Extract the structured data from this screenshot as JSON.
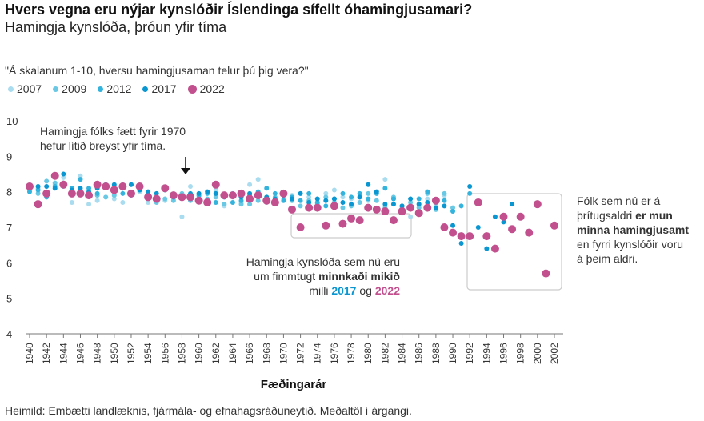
{
  "header": {
    "title": "Hvers vegna eru nýjar kynslóðir Íslendinga sífellt óhamingjusamari?",
    "subtitle": "Hamingja kynslóða, þróun yfir tíma",
    "question": "\"Á skalanum 1-10, hversu hamingjusaman telur þú þig vera?\""
  },
  "source": "Heimild: Embætti landlæknis, fjármála- og efnahagsráðuneytið. Meðaltöl í árgangi.",
  "annotations": {
    "top_left": [
      "Hamingja fólks fætt fyrir 1970",
      "hefur lítið breyst yfir tíma."
    ],
    "middle": {
      "line1": "Hamingja kynslóða sem nú eru",
      "line2_pre": "um fimmtugt ",
      "line2_bold": "minnkaði mikið",
      "line3_pre": "milli ",
      "year_a": "2017",
      "line3_mid": " og ",
      "year_b": "2022"
    },
    "right": {
      "line1": "Fólk sem nú er á",
      "line2_pre": "þrítugsaldri ",
      "line2_bold": "er mun",
      "line3_bold": "minna hamingjusamt",
      "line4": "en fyrri kynslóðir voru",
      "line5": "á þeim aldri."
    }
  },
  "colors": {
    "2007": "#a9dcef",
    "2009": "#69c8e3",
    "2012": "#34b3dd",
    "2017": "#0a96d1",
    "2022": "#c2508f",
    "box": "#cccccc"
  },
  "chart_data": {
    "type": "scatter",
    "xlabel": "Fæðingarár",
    "ylabel": "",
    "xlim": [
      1940,
      2002
    ],
    "ylim": [
      4,
      10
    ],
    "yticks": [
      4,
      5,
      6,
      7,
      8,
      9,
      10
    ],
    "xticks": [
      1940,
      1942,
      1944,
      1946,
      1948,
      1950,
      1952,
      1954,
      1956,
      1958,
      1960,
      1962,
      1964,
      1966,
      1968,
      1970,
      1972,
      1974,
      1976,
      1978,
      1980,
      1982,
      1984,
      1986,
      1988,
      1990,
      1992,
      1994,
      1996,
      1998,
      2000,
      2002
    ],
    "grid": false,
    "legend_position": "top-left",
    "series": [
      {
        "name": "2007",
        "x": [
          1940,
          1941,
          1942,
          1943,
          1944,
          1945,
          1946,
          1947,
          1948,
          1949,
          1950,
          1951,
          1952,
          1953,
          1954,
          1955,
          1956,
          1957,
          1958,
          1959,
          1960,
          1961,
          1962,
          1963,
          1964,
          1965,
          1966,
          1967,
          1968,
          1969,
          1970,
          1971,
          1972,
          1973,
          1974,
          1975,
          1976,
          1977,
          1978,
          1979,
          1980,
          1981,
          1982,
          1983,
          1984,
          1985,
          1986,
          1987,
          1988,
          1989
        ],
        "y": [
          8.05,
          8.1,
          8.0,
          8.2,
          8.4,
          7.7,
          8.45,
          7.65,
          7.75,
          7.85,
          7.8,
          7.7,
          7.95,
          8.0,
          7.7,
          7.75,
          7.75,
          7.8,
          7.3,
          8.15,
          7.85,
          7.75,
          8.05,
          7.6,
          7.85,
          7.7,
          8.2,
          8.35,
          7.7,
          7.65,
          7.8,
          7.9,
          7.95,
          7.85,
          7.7,
          7.95,
          8.05,
          7.85,
          7.8,
          7.85,
          7.75,
          7.95,
          8.35,
          7.8,
          7.55,
          7.3,
          7.65,
          7.8,
          7.65,
          7.9
        ]
      },
      {
        "name": "2009",
        "x": [
          1940,
          1941,
          1942,
          1943,
          1944,
          1945,
          1946,
          1947,
          1948,
          1949,
          1950,
          1951,
          1952,
          1953,
          1954,
          1955,
          1956,
          1957,
          1958,
          1959,
          1960,
          1961,
          1962,
          1963,
          1964,
          1965,
          1966,
          1967,
          1968,
          1969,
          1970,
          1971,
          1972,
          1973,
          1974,
          1975,
          1976,
          1977,
          1978,
          1979,
          1980,
          1981,
          1982,
          1983,
          1984,
          1985,
          1986,
          1987,
          1988,
          1989,
          1990
        ],
        "y": [
          8.1,
          7.95,
          8.3,
          8.25,
          8.15,
          7.95,
          7.95,
          7.95,
          7.9,
          7.85,
          7.9,
          8.2,
          7.9,
          8.05,
          7.95,
          7.7,
          7.8,
          7.75,
          7.95,
          7.75,
          7.75,
          7.8,
          7.85,
          7.65,
          7.95,
          7.65,
          7.65,
          7.75,
          7.85,
          7.85,
          7.9,
          7.75,
          7.6,
          7.75,
          7.65,
          7.85,
          7.7,
          7.55,
          7.6,
          7.7,
          7.95,
          7.75,
          7.55,
          7.85,
          7.6,
          7.7,
          7.55,
          7.95,
          7.5,
          7.95,
          7.55
        ]
      },
      {
        "name": "2012",
        "x": [
          1940,
          1941,
          1942,
          1943,
          1944,
          1945,
          1946,
          1947,
          1948,
          1949,
          1950,
          1951,
          1952,
          1953,
          1954,
          1955,
          1956,
          1957,
          1958,
          1959,
          1960,
          1961,
          1962,
          1963,
          1964,
          1965,
          1966,
          1967,
          1968,
          1969,
          1970,
          1971,
          1972,
          1973,
          1974,
          1975,
          1976,
          1977,
          1978,
          1979,
          1980,
          1981,
          1982,
          1983,
          1984,
          1985,
          1986,
          1987,
          1988,
          1989,
          1990,
          1991,
          1992
        ],
        "y": [
          8.0,
          8.05,
          7.85,
          8.15,
          8.25,
          8.1,
          8.35,
          8.1,
          7.95,
          8.2,
          8.0,
          7.95,
          8.2,
          8.15,
          7.9,
          7.8,
          8.05,
          7.9,
          7.85,
          7.8,
          7.9,
          7.95,
          7.7,
          7.9,
          7.7,
          7.75,
          7.9,
          8.0,
          8.1,
          7.95,
          7.75,
          7.85,
          7.75,
          7.95,
          7.7,
          7.6,
          7.8,
          7.95,
          7.85,
          7.95,
          7.8,
          7.95,
          8.1,
          7.8,
          7.4,
          7.6,
          7.8,
          8.0,
          7.7,
          7.75,
          7.45,
          7.6,
          7.95
        ]
      },
      {
        "name": "2017",
        "x": [
          1940,
          1941,
          1942,
          1943,
          1944,
          1945,
          1946,
          1947,
          1948,
          1949,
          1950,
          1951,
          1952,
          1953,
          1954,
          1955,
          1956,
          1957,
          1958,
          1959,
          1960,
          1961,
          1962,
          1963,
          1964,
          1965,
          1966,
          1967,
          1968,
          1969,
          1970,
          1971,
          1972,
          1973,
          1974,
          1975,
          1976,
          1977,
          1978,
          1979,
          1980,
          1981,
          1982,
          1983,
          1984,
          1985,
          1986,
          1987,
          1988,
          1989,
          1990,
          1991,
          1992,
          1993,
          1994,
          1995,
          1996,
          1997
        ],
        "y": [
          8.15,
          8.15,
          8.15,
          8.1,
          8.5,
          8.05,
          8.1,
          8.0,
          8.1,
          8.15,
          8.2,
          8.1,
          8.2,
          8.05,
          8.0,
          7.95,
          8.1,
          7.85,
          7.85,
          7.95,
          7.95,
          8.0,
          7.95,
          7.85,
          7.9,
          7.85,
          7.95,
          7.9,
          7.85,
          7.8,
          7.9,
          7.8,
          7.95,
          7.7,
          7.8,
          7.75,
          7.8,
          7.7,
          7.65,
          7.85,
          8.2,
          8.0,
          7.65,
          7.65,
          7.6,
          7.8,
          7.65,
          7.7,
          7.55,
          7.6,
          7.05,
          6.55,
          8.15,
          7.0,
          6.4,
          7.3,
          7.15,
          7.65
        ]
      },
      {
        "name": "2022",
        "x": [
          1940,
          1941,
          1942,
          1943,
          1944,
          1945,
          1946,
          1947,
          1948,
          1949,
          1950,
          1951,
          1952,
          1953,
          1954,
          1955,
          1956,
          1957,
          1958,
          1959,
          1960,
          1961,
          1962,
          1963,
          1964,
          1965,
          1966,
          1967,
          1968,
          1969,
          1970,
          1971,
          1972,
          1973,
          1974,
          1975,
          1976,
          1977,
          1978,
          1979,
          1980,
          1981,
          1982,
          1983,
          1984,
          1985,
          1986,
          1987,
          1988,
          1989,
          1990,
          1991,
          1992,
          1993,
          1994,
          1995,
          1996,
          1997,
          1998,
          1999,
          2000,
          2001,
          2002
        ],
        "y": [
          8.15,
          7.65,
          7.95,
          8.45,
          8.2,
          7.95,
          7.95,
          7.9,
          8.2,
          8.15,
          8.05,
          8.15,
          7.95,
          8.15,
          7.85,
          7.8,
          8.1,
          7.9,
          7.85,
          7.85,
          7.75,
          7.7,
          8.2,
          7.9,
          7.9,
          7.95,
          7.8,
          7.9,
          7.75,
          7.7,
          7.95,
          7.5,
          7.0,
          7.55,
          7.55,
          7.05,
          7.6,
          7.1,
          7.25,
          7.2,
          7.55,
          7.5,
          7.45,
          7.2,
          7.45,
          7.55,
          7.4,
          7.55,
          7.75,
          7.0,
          6.85,
          6.75,
          6.75,
          7.7,
          6.75,
          6.4,
          7.3,
          6.95,
          7.3,
          6.85,
          7.65,
          5.7,
          7.05
        ]
      }
    ]
  }
}
